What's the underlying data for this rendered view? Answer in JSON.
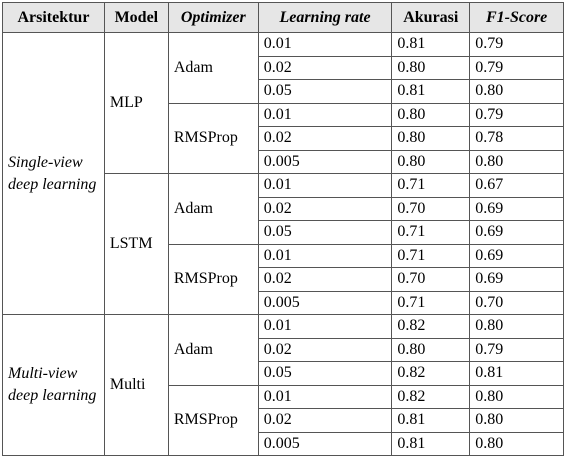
{
  "headers": [
    "Arsitektur",
    "Model",
    "Optimizer",
    "Learning rate",
    "Akurasi",
    "F1-Score"
  ],
  "groups": [
    {
      "arsitektur": "Single-view deep learning",
      "models": [
        {
          "name": "MLP",
          "optimizers": [
            {
              "name": "Adam",
              "rows": [
                {
                  "lr": "0.01",
                  "akurasi": "0.81",
                  "f1": "0.79"
                },
                {
                  "lr": "0.02",
                  "akurasi": "0.80",
                  "f1": "0.79"
                },
                {
                  "lr": "0.05",
                  "akurasi": "0.81",
                  "f1": "0.80"
                }
              ]
            },
            {
              "name": "RMSProp",
              "rows": [
                {
                  "lr": "0.01",
                  "akurasi": "0.80",
                  "f1": "0.79"
                },
                {
                  "lr": "0.02",
                  "akurasi": "0.80",
                  "f1": "0.78"
                },
                {
                  "lr": "0.005",
                  "akurasi": "0.80",
                  "f1": "0.80"
                }
              ]
            }
          ]
        },
        {
          "name": "LSTM",
          "optimizers": [
            {
              "name": "Adam",
              "rows": [
                {
                  "lr": "0.01",
                  "akurasi": "0.71",
                  "f1": "0.67"
                },
                {
                  "lr": "0.02",
                  "akurasi": "0.70",
                  "f1": "0.69"
                },
                {
                  "lr": "0.05",
                  "akurasi": "0.71",
                  "f1": "0.69"
                }
              ]
            },
            {
              "name": "RMSProp",
              "rows": [
                {
                  "lr": "0.01",
                  "akurasi": "0.71",
                  "f1": "0.69"
                },
                {
                  "lr": "0.02",
                  "akurasi": "0.70",
                  "f1": "0.69"
                },
                {
                  "lr": "0.005",
                  "akurasi": "0.71",
                  "f1": "0.70"
                }
              ]
            }
          ]
        }
      ]
    },
    {
      "arsitektur": "Multi-view deep learning",
      "models": [
        {
          "name": "Multi",
          "optimizers": [
            {
              "name": "Adam",
              "rows": [
                {
                  "lr": "0.01",
                  "akurasi": "0.82",
                  "f1": "0.80"
                },
                {
                  "lr": "0.02",
                  "akurasi": "0.80",
                  "f1": "0.79"
                },
                {
                  "lr": "0.05",
                  "akurasi": "0.82",
                  "f1": "0.81"
                }
              ]
            },
            {
              "name": "RMSProp",
              "rows": [
                {
                  "lr": "0.01",
                  "akurasi": "0.82",
                  "f1": "0.80"
                },
                {
                  "lr": "0.02",
                  "akurasi": "0.81",
                  "f1": "0.80"
                },
                {
                  "lr": "0.005",
                  "akurasi": "0.81",
                  "f1": "0.80"
                }
              ]
            }
          ]
        }
      ]
    }
  ]
}
